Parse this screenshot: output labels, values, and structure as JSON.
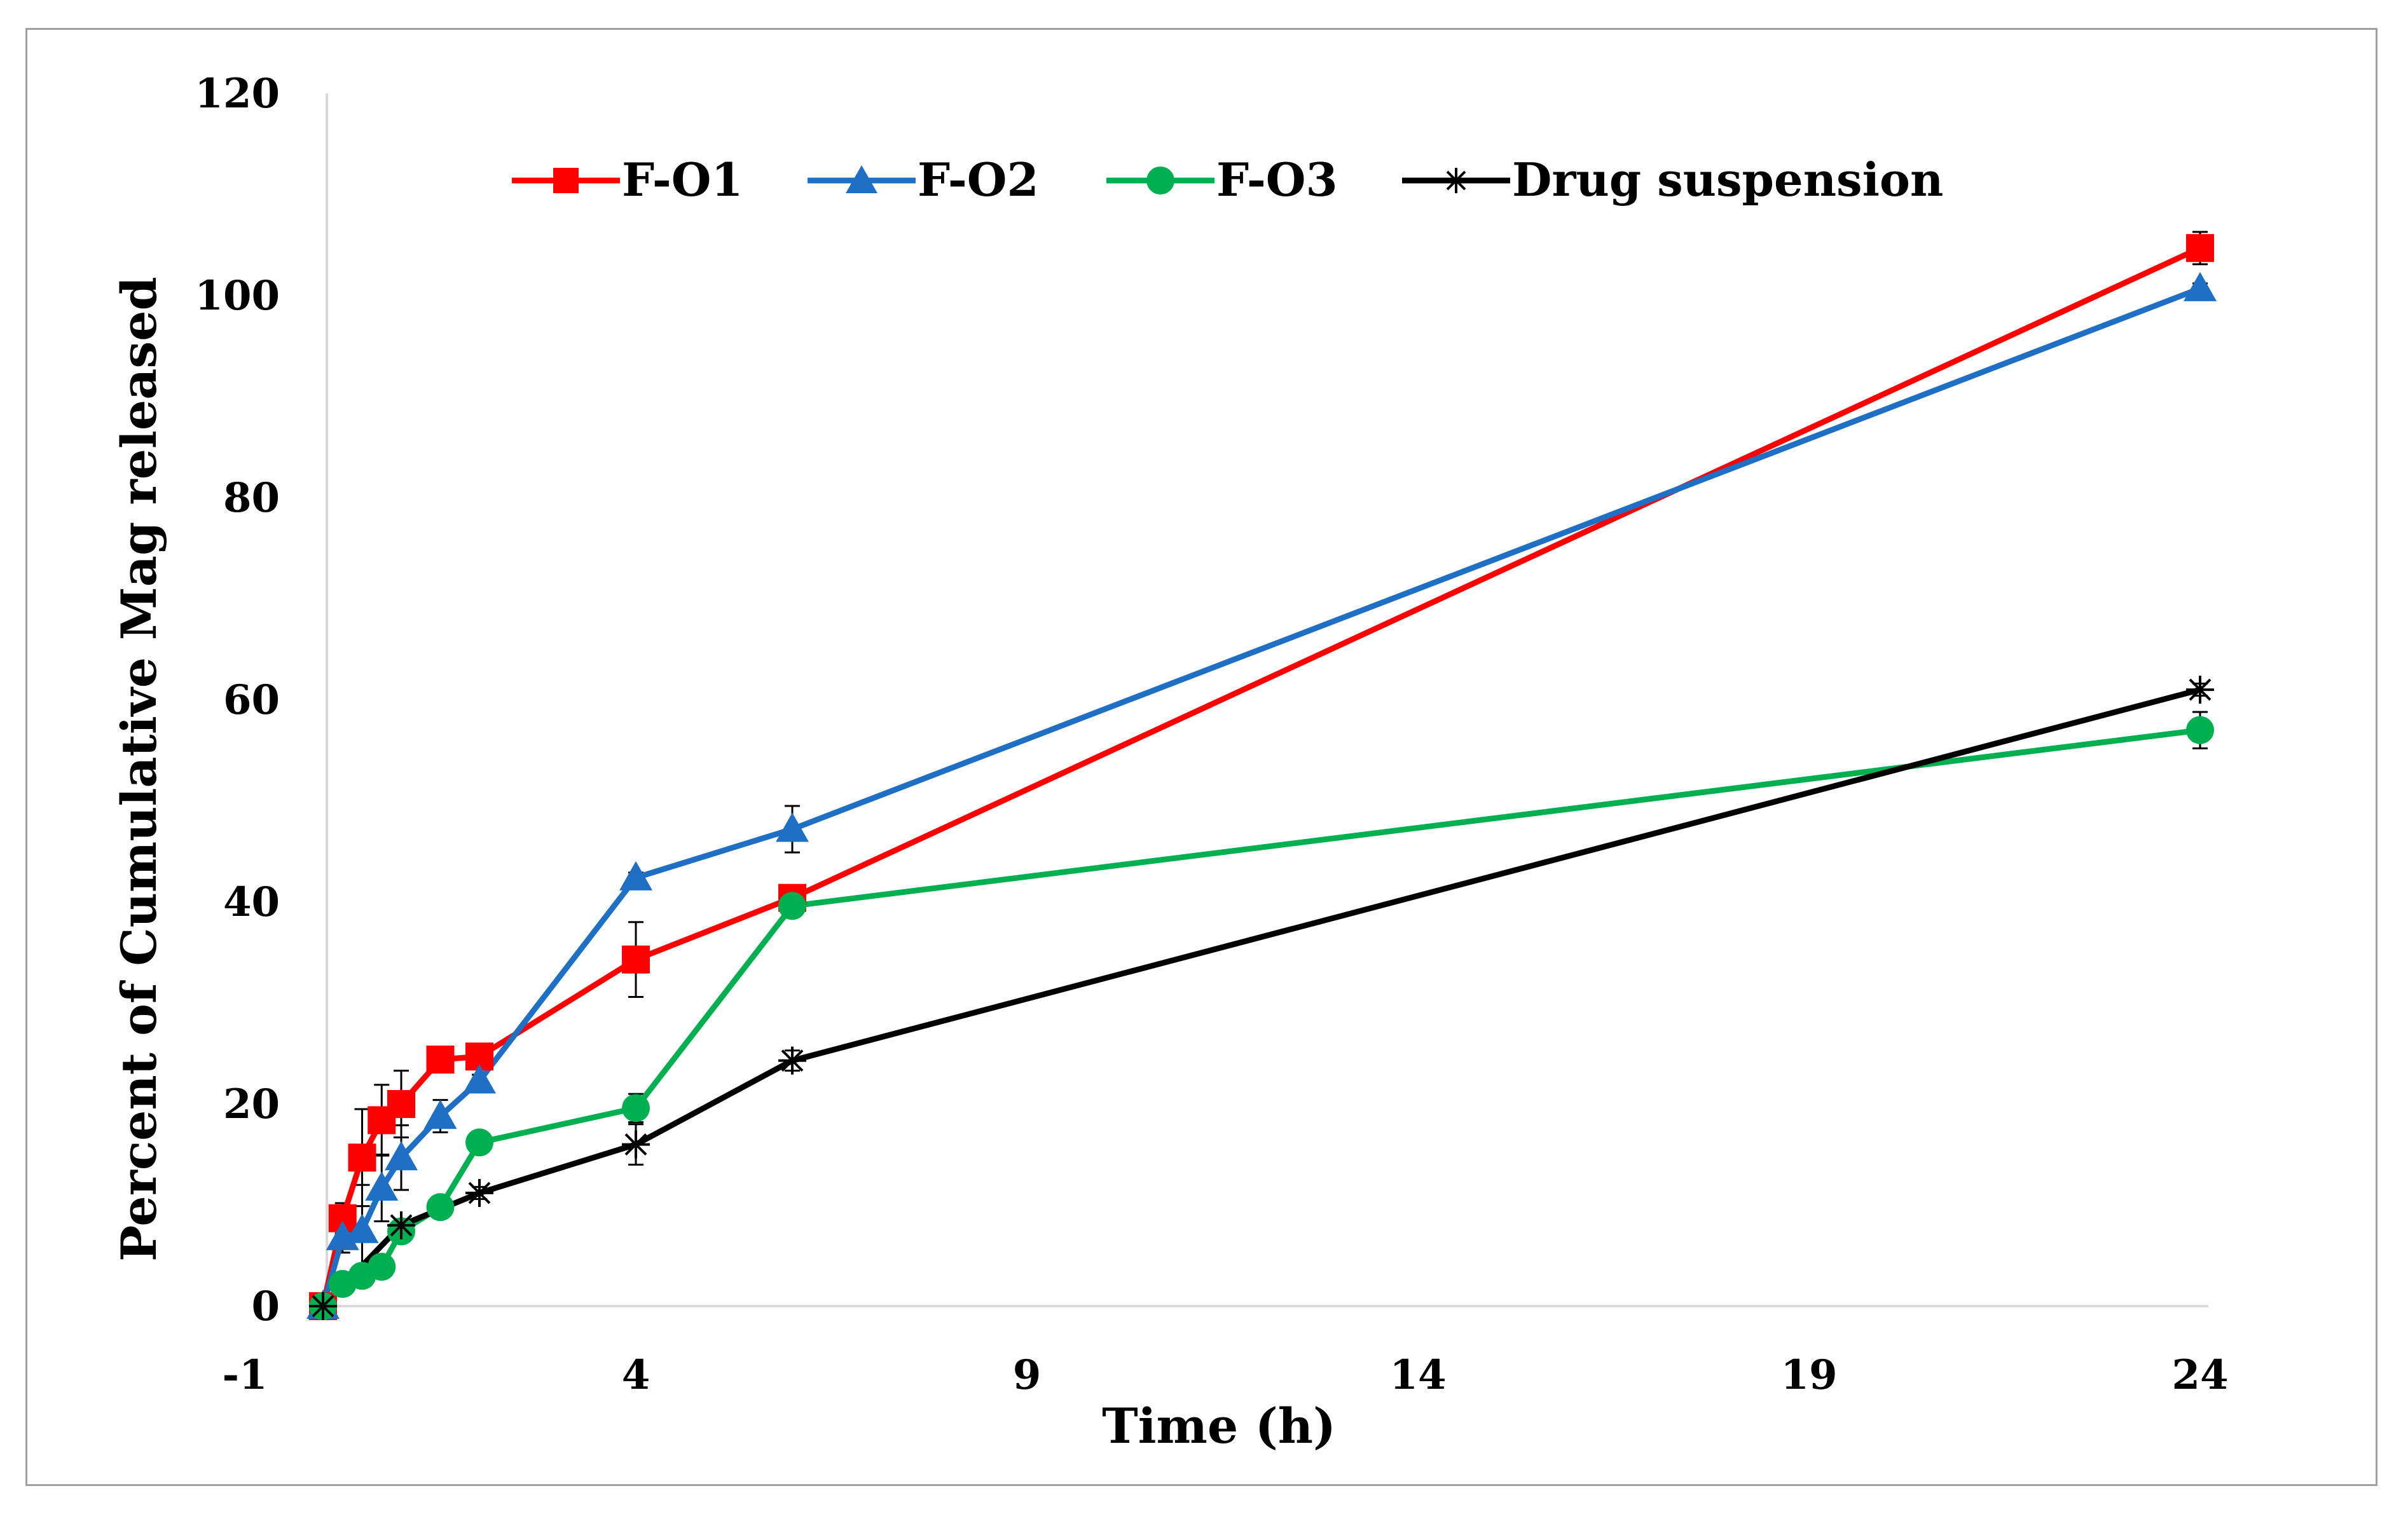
{
  "chart_data": {
    "type": "line",
    "title": "",
    "xlabel": "Time (h)",
    "ylabel": "Percent of Cumulative Mag released",
    "xlim": [
      -1,
      24
    ],
    "ylim": [
      0,
      120
    ],
    "xticks": [
      -1,
      4,
      9,
      14,
      19,
      24
    ],
    "yticks": [
      0,
      20,
      40,
      60,
      80,
      100,
      120
    ],
    "x_tick_labels": [
      "-1",
      "4",
      "9",
      "14",
      "19",
      "24"
    ],
    "y_tick_labels": [
      "0",
      "20",
      "40",
      "60",
      "80",
      "100",
      "120"
    ],
    "grid": false,
    "legend_position": "top",
    "series": [
      {
        "name": "F-O1",
        "color": "#ff0000",
        "marker": "square",
        "x": [
          0,
          0.25,
          0.5,
          0.75,
          1,
          1.5,
          2,
          4,
          6,
          24
        ],
        "y": [
          0,
          8.7,
          14.7,
          18.4,
          20,
          24.4,
          24.7,
          34.3,
          40.4,
          104.7
        ],
        "err": [
          0,
          1.5,
          4.8,
          3.5,
          3.3,
          0.8,
          0.5,
          3.7,
          0.8,
          1.6
        ]
      },
      {
        "name": "F-O2",
        "color": "#1f6fc5",
        "marker": "triangle",
        "x": [
          0,
          0.25,
          0.5,
          0.75,
          1,
          1.5,
          2,
          4,
          6,
          24
        ],
        "y": [
          0,
          6.8,
          7.5,
          11.7,
          14.7,
          18.8,
          22.3,
          42.4,
          47.2,
          100.7
        ],
        "err": [
          0,
          1.5,
          4.5,
          3.3,
          3.2,
          1.6,
          0.6,
          0.5,
          2.3,
          0.5
        ]
      },
      {
        "name": "F-O3",
        "color": "#00b050",
        "marker": "circle",
        "x": [
          0,
          0.25,
          0.5,
          0.75,
          1,
          1.5,
          2,
          4,
          6,
          24
        ],
        "y": [
          0,
          2.2,
          3.0,
          3.9,
          7.4,
          9.8,
          16.2,
          19.6,
          39.6,
          57.0
        ],
        "err": [
          0,
          0.7,
          0.8,
          0.6,
          0.8,
          0.7,
          0.8,
          1.4,
          0.8,
          1.8
        ]
      },
      {
        "name": "Drug suspension",
        "color": "#000000",
        "marker": "star",
        "x": [
          0,
          1,
          2,
          4,
          6,
          24
        ],
        "y": [
          0,
          8.0,
          11.2,
          16.0,
          24.3,
          61.0
        ],
        "err": [
          0,
          0.6,
          0.6,
          2.0,
          1.0,
          0.6
        ]
      }
    ]
  }
}
